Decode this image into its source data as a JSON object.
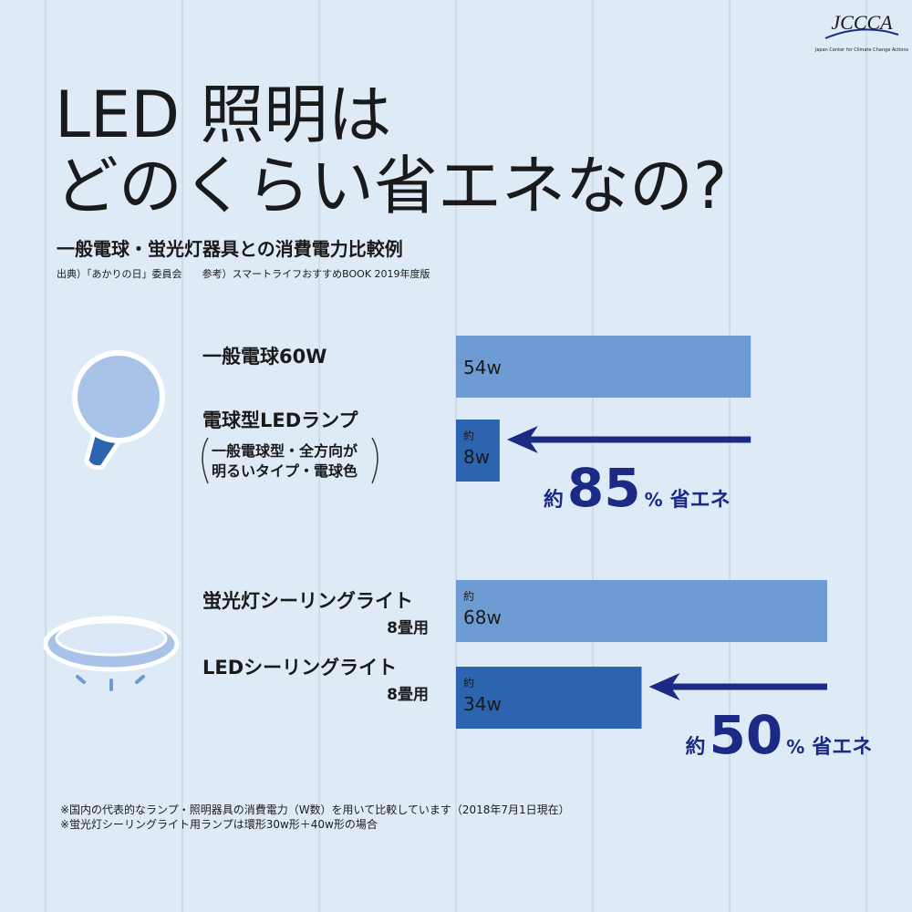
{
  "logo": {
    "name": "JCCCA",
    "tagline": "Japan Center for Climate Change Actions"
  },
  "chart_data": {
    "type": "bar",
    "title": [
      "LED 照明は",
      "どのくらい省エネなの?"
    ],
    "subtitle": "一般電球・蛍光灯器具との消費電力比較例",
    "source": "出典）「あかりの日」委員会　　参考）スマートライフおすすめBOOK 2019年度版",
    "categories": [
      "一般電球60W",
      "電球型LEDランプ",
      "蛍光灯シーリングライト",
      "LEDシーリングライト"
    ],
    "category_notes": [
      null,
      [
        "一般電球型・全方向が",
        "明るいタイプ・電球色"
      ],
      [
        "8畳用"
      ],
      [
        "8畳用"
      ]
    ],
    "values": [
      54,
      8,
      68,
      34
    ],
    "value_prefixes": [
      null,
      "約",
      "約",
      "約"
    ],
    "value_labels": [
      "54w",
      "8w",
      "68w",
      "34w"
    ],
    "colors": [
      "#6e9bd2",
      "#2c64b0",
      "#6e9bd2",
      "#2c64b0"
    ],
    "arrow_color": "#1b2a84",
    "annotations": [
      {
        "prefix": "約",
        "number": 85,
        "unit": "%",
        "text": "省エネ"
      },
      {
        "prefix": "約",
        "number": 50,
        "unit": "%",
        "text": "省エネ"
      }
    ],
    "footnotes": [
      "※国内の代表的なランプ・照明器具の消費電力（W数）を用いて比較しています（2018年7月1日現在）",
      "※蛍光灯シーリングライト用ランプは環形30w形＋40w形の場合"
    ]
  }
}
